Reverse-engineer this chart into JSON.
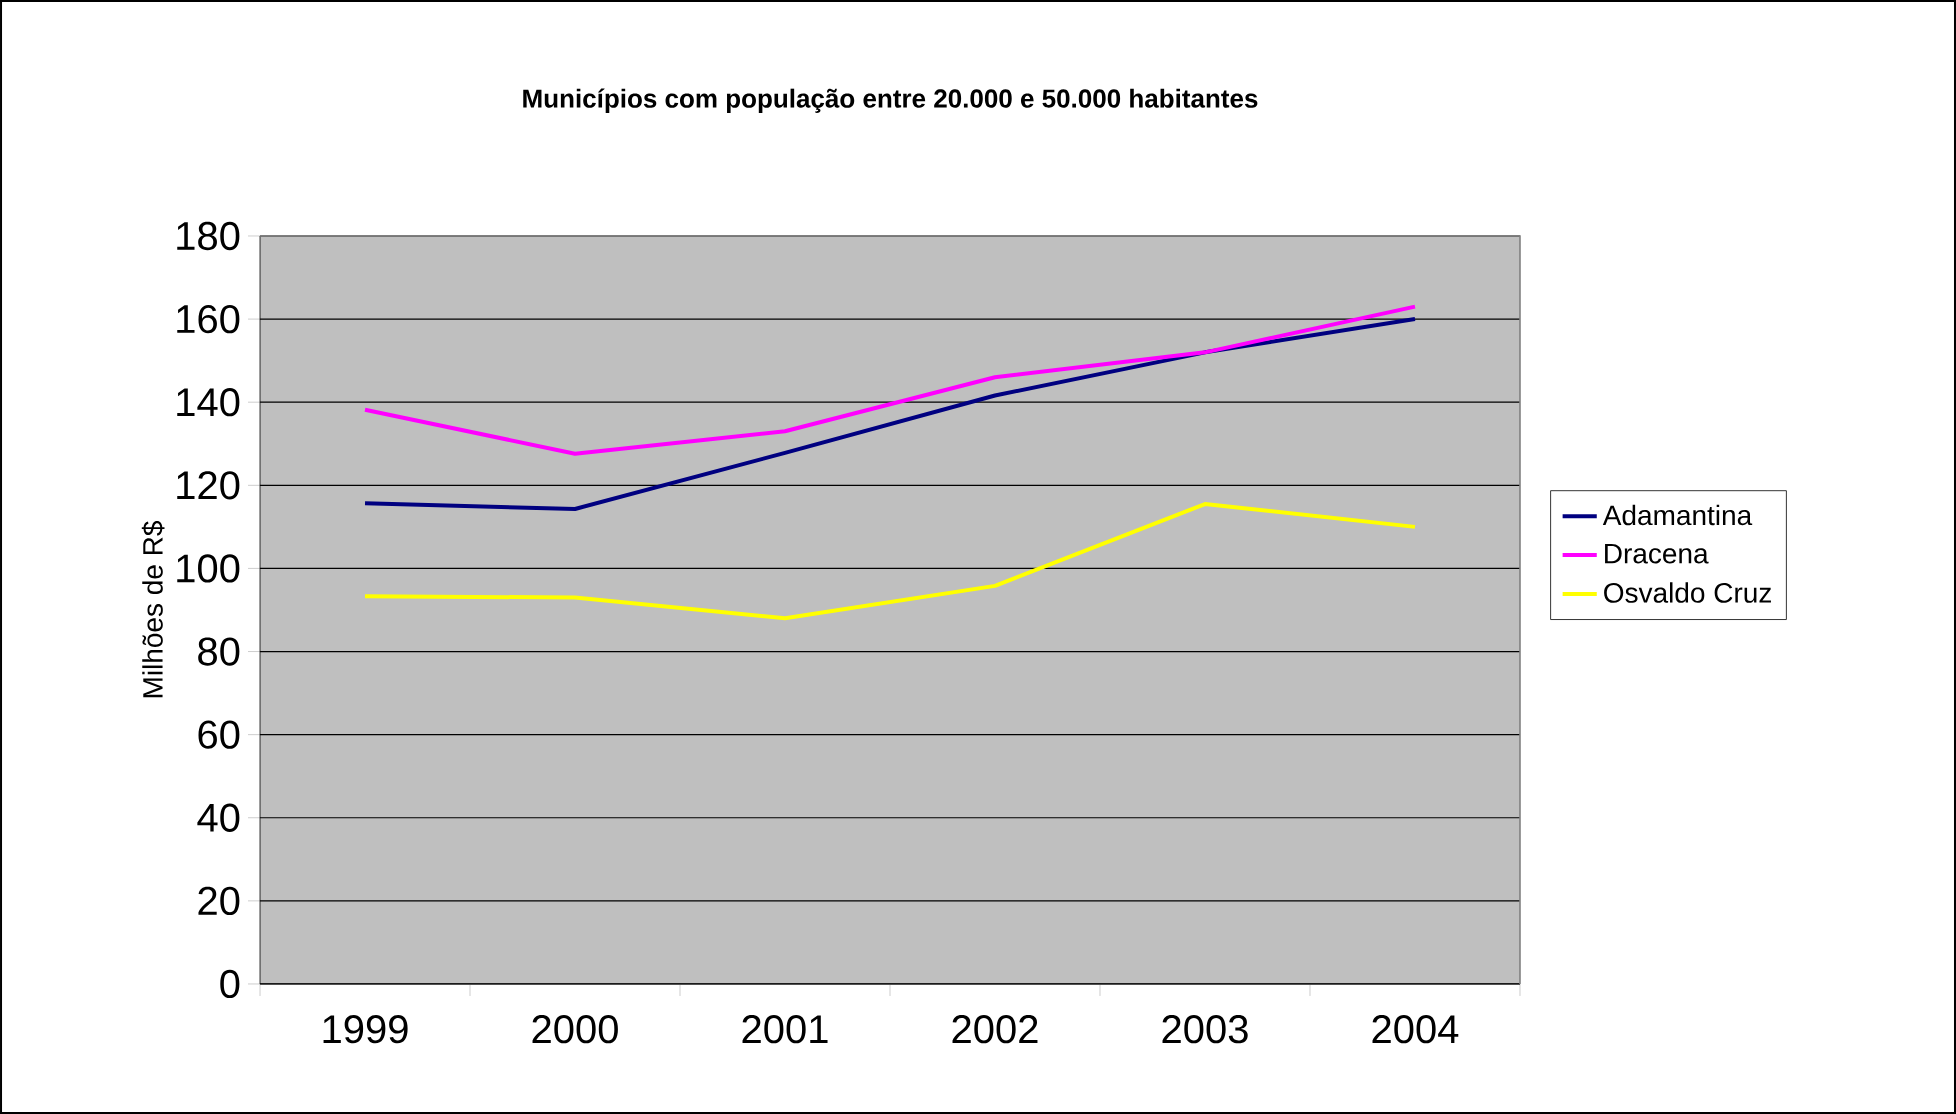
{
  "chart_data": {
    "type": "line",
    "title": "Municípios com população entre 20.000 e 50.000 habitantes",
    "ylabel": "Milhões de R$",
    "categories": [
      "1999",
      "2000",
      "2001",
      "2002",
      "2003",
      "2004"
    ],
    "series": [
      {
        "name": "Adamantina",
        "color": "#000080",
        "values": [
          115.7,
          114.3,
          127.8,
          141.6,
          152,
          160
        ]
      },
      {
        "name": "Dracena",
        "color": "#ff00ff",
        "values": [
          138.2,
          127.6,
          133,
          146,
          152,
          163
        ]
      },
      {
        "name": "Osvaldo Cruz",
        "color": "#ffff00",
        "values": [
          93.3,
          93,
          88,
          95.8,
          115.5,
          110
        ]
      }
    ],
    "ylim": [
      0,
      180
    ],
    "yticks": [
      0,
      20,
      40,
      60,
      80,
      100,
      120,
      140,
      160,
      180
    ],
    "grid": "y",
    "legend": "right"
  }
}
